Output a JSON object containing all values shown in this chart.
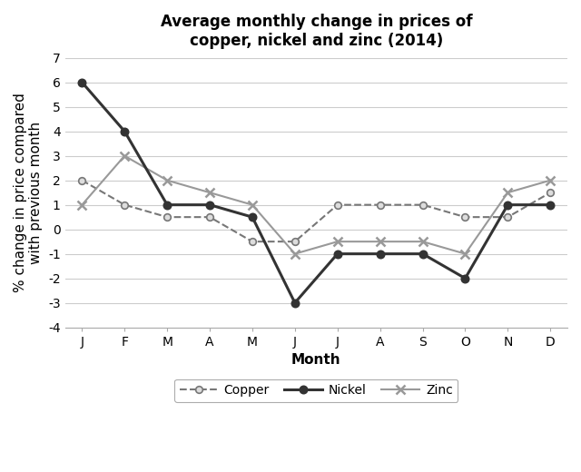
{
  "title": "Average monthly change in prices of\ncopper, nickel and zinc (2014)",
  "xlabel": "Month",
  "ylabel": "% change in price compared\nwith previous month",
  "months": [
    "J",
    "F",
    "M",
    "A",
    "M",
    "J",
    "J",
    "A",
    "S",
    "O",
    "N",
    "D"
  ],
  "copper": [
    2,
    1,
    0.5,
    0.5,
    -0.5,
    -0.5,
    1,
    1,
    1,
    0.5,
    0.5,
    1.5
  ],
  "nickel": [
    6,
    4,
    1,
    1,
    0.5,
    -3,
    -1,
    -1,
    -1,
    -2,
    1,
    1
  ],
  "zinc": [
    1,
    3,
    2,
    1.5,
    1,
    -1,
    -0.5,
    -0.5,
    -0.5,
    -1,
    1.5,
    2
  ],
  "ylim": [
    -4,
    7
  ],
  "yticks": [
    -4,
    -3,
    -2,
    -1,
    0,
    1,
    2,
    3,
    4,
    5,
    6,
    7
  ],
  "copper_color": "#777777",
  "nickel_color": "#333333",
  "zinc_color": "#999999",
  "grid_color": "#cccccc",
  "background_color": "#ffffff",
  "title_fontsize": 12,
  "axis_label_fontsize": 11,
  "tick_fontsize": 10,
  "legend_fontsize": 10
}
